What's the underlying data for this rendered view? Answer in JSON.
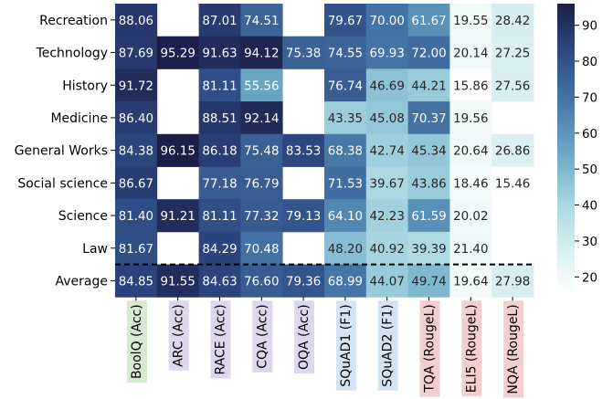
{
  "chart_data": {
    "type": "heatmap",
    "rows": [
      "Recreation",
      "Technology",
      "History",
      "Medicine",
      "General Works",
      "Social science",
      "Science",
      "Law",
      "Average"
    ],
    "columns": [
      {
        "label": "BoolQ (Acc)",
        "tag_color": "#d5ead0"
      },
      {
        "label": "ARC (Acc)",
        "tag_color": "#ddd6ee"
      },
      {
        "label": "RACE (Acc)",
        "tag_color": "#ddd6ee"
      },
      {
        "label": "CQA (Acc)",
        "tag_color": "#ddd6ee"
      },
      {
        "label": "OQA (Acc)",
        "tag_color": "#ddd6ee"
      },
      {
        "label": "SQuAD1 (F1)",
        "tag_color": "#d4e3f3"
      },
      {
        "label": "SQuAD2 (F1)",
        "tag_color": "#d4e3f3"
      },
      {
        "label": "TQA (RougeL)",
        "tag_color": "#f3cfcf"
      },
      {
        "label": "ELI5 (RougeL)",
        "tag_color": "#f3cfcf"
      },
      {
        "label": "NQA (RougeL)",
        "tag_color": "#f3cfcf"
      }
    ],
    "values": [
      [
        "88.06",
        null,
        "87.01",
        "74.51",
        null,
        "79.67",
        "70.00",
        "61.67",
        "19.55",
        "28.42"
      ],
      [
        "87.69",
        "95.29",
        "91.63",
        "94.12",
        "75.38",
        "74.55",
        "69.93",
        "72.00",
        "20.14",
        "27.25"
      ],
      [
        "91.72",
        null,
        "81.11",
        "55.56",
        null,
        "76.74",
        "46.69",
        "44.21",
        "15.86",
        "27.56"
      ],
      [
        "86.40",
        null,
        "88.51",
        "92.14",
        null,
        "43.35",
        "45.08",
        "70.37",
        "19.56",
        null
      ],
      [
        "84.38",
        "96.15",
        "86.18",
        "75.48",
        "83.53",
        "68.38",
        "42.74",
        "45.34",
        "20.64",
        "26.86"
      ],
      [
        "86.67",
        null,
        "77.18",
        "76.79",
        null,
        "71.53",
        "39.67",
        "43.86",
        "18.46",
        "15.46"
      ],
      [
        "81.40",
        "91.21",
        "81.11",
        "77.32",
        "79.13",
        "64.10",
        "42.23",
        "61.59",
        "20.02",
        null
      ],
      [
        "81.67",
        null,
        "84.29",
        "70.48",
        null,
        "48.20",
        "40.92",
        "39.39",
        "21.40",
        null
      ],
      [
        "84.85",
        "91.55",
        "84.63",
        "76.60",
        "79.36",
        "68.99",
        "44.07",
        "49.74",
        "19.64",
        "27.98"
      ]
    ],
    "separator": "dashed line above Average row",
    "colorbar": {
      "min": 15,
      "max": 96,
      "ticks": [
        20,
        30,
        40,
        50,
        60,
        70,
        80,
        90
      ],
      "colormap": "white to light cyan to steel blue to dark navy"
    }
  }
}
